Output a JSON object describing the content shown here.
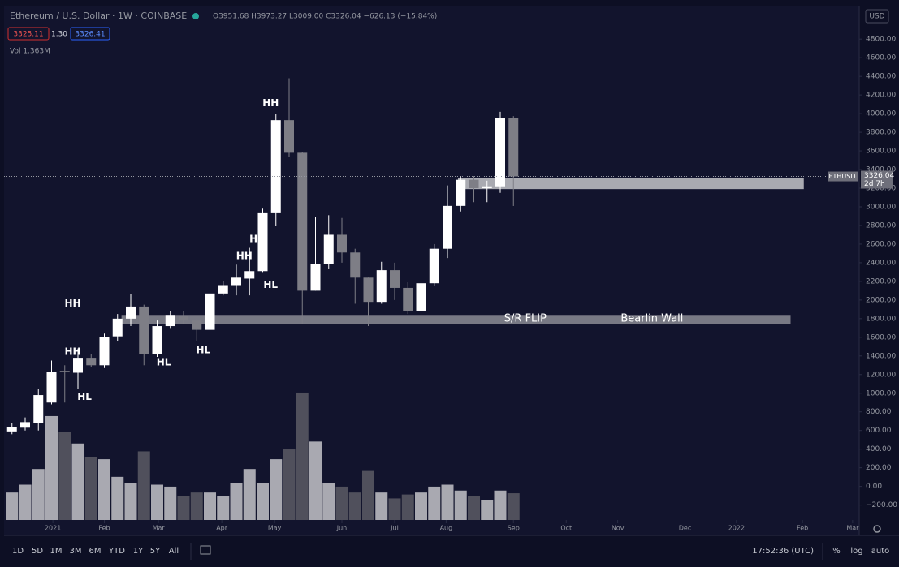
{
  "header": {
    "symbol": "Ethereum / U.S. Dollar · 1W · COINBASE",
    "ohlc": "O3951.68 H3973.27 L3009.00 C3326.04 −626.13 (−15.84%)",
    "bid": "3325.11",
    "spread": "1.30",
    "ask": "3326.41",
    "volume": "Vol 1.363M",
    "currency": "USD"
  },
  "chart_data": {
    "type": "candlestick",
    "open": [
      590,
      630,
      680,
      900,
      1240,
      1220,
      1380,
      1300,
      1610,
      1800,
      1930,
      1420,
      1720,
      1830,
      1780,
      1680,
      2070,
      2160,
      2230,
      2310,
      2940,
      3930,
      3580,
      2100,
      2390,
      2700,
      2510,
      2240,
      1980,
      2320,
      2130,
      1880,
      2180,
      2550,
      3010,
      3290,
      3200,
      3220,
      3951.68
    ],
    "high": [
      680,
      740,
      1050,
      1350,
      1300,
      1480,
      1420,
      1640,
      1850,
      2060,
      1950,
      1780,
      1880,
      1880,
      1800,
      2150,
      2200,
      2380,
      2560,
      2980,
      4000,
      4380,
      3590,
      2890,
      2910,
      2880,
      2550,
      2240,
      2410,
      2400,
      2190,
      2200,
      2600,
      3230,
      3330,
      3330,
      3280,
      4020,
      3973.27
    ],
    "low": [
      560,
      600,
      600,
      880,
      900,
      1050,
      1280,
      1270,
      1560,
      1720,
      1300,
      1390,
      1700,
      1740,
      1560,
      1650,
      2050,
      2050,
      2050,
      2300,
      2800,
      3540,
      1740,
      2100,
      2330,
      2400,
      1960,
      1720,
      1960,
      2000,
      1850,
      1720,
      2150,
      2450,
      2950,
      3050,
      3050,
      3150,
      3009.0
    ],
    "close": [
      640,
      690,
      980,
      1230,
      1230,
      1380,
      1300,
      1600,
      1800,
      1930,
      1420,
      1720,
      1840,
      1780,
      1680,
      2070,
      2160,
      2240,
      2310,
      2940,
      3930,
      3580,
      2100,
      2390,
      2700,
      2510,
      2240,
      1980,
      2320,
      2130,
      1880,
      2180,
      2550,
      3010,
      3290,
      3200,
      3220,
      3950,
      3326.04
    ],
    "volume": [
      1.4,
      1.8,
      2.6,
      5.3,
      4.5,
      3.9,
      3.2,
      3.1,
      2.2,
      1.9,
      3.5,
      1.8,
      1.7,
      1.2,
      1.4,
      1.4,
      1.2,
      1.9,
      2.6,
      1.9,
      3.1,
      3.6,
      6.5,
      4.0,
      1.9,
      1.7,
      1.4,
      2.5,
      1.4,
      1.1,
      1.3,
      1.4,
      1.7,
      1.8,
      1.5,
      1.2,
      1.0,
      1.5,
      1.363
    ],
    "up_color": "#ffffff",
    "down_color": "#7e7e86",
    "volume_up_color": "#a9a9b1",
    "volume_down_color": "#50505c",
    "xlim": [
      -0.6,
      64.2
    ],
    "xticks": [
      {
        "value": 3.1,
        "label": "2021"
      },
      {
        "value": 7.0,
        "label": "Feb"
      },
      {
        "value": 11.1,
        "label": "Mar"
      },
      {
        "value": 15.9,
        "label": "Apr"
      },
      {
        "value": 19.9,
        "label": "May"
      },
      {
        "value": 25.0,
        "label": "Jun"
      },
      {
        "value": 29.0,
        "label": "Jul"
      },
      {
        "value": 32.9,
        "label": "Aug"
      },
      {
        "value": 38.0,
        "label": "Sep"
      },
      {
        "value": 42.0,
        "label": "Oct"
      },
      {
        "value": 45.9,
        "label": "Nov"
      },
      {
        "value": 51.0,
        "label": "Dec"
      },
      {
        "value": 54.9,
        "label": "2022"
      },
      {
        "value": 59.9,
        "label": "Feb"
      },
      {
        "value": 63.7,
        "label": "Mar"
      }
    ],
    "ylim": [
      -360,
      5150
    ],
    "yticks": [
      {
        "value": -200,
        "label": "−200.00"
      },
      {
        "value": 0,
        "label": "0.00"
      },
      {
        "value": 200,
        "label": "200.00"
      },
      {
        "value": 400,
        "label": "400.00"
      },
      {
        "value": 600,
        "label": "600.00"
      },
      {
        "value": 800,
        "label": "800.00"
      },
      {
        "value": 1000,
        "label": "1000.00"
      },
      {
        "value": 1200,
        "label": "1200.00"
      },
      {
        "value": 1400,
        "label": "1400.00"
      },
      {
        "value": 1600,
        "label": "1600.00"
      },
      {
        "value": 1800,
        "label": "1800.00"
      },
      {
        "value": 2000,
        "label": "2000.00"
      },
      {
        "value": 2200,
        "label": "2200.00"
      },
      {
        "value": 2400,
        "label": "2400.00"
      },
      {
        "value": 2600,
        "label": "2600.00"
      },
      {
        "value": 2800,
        "label": "2800.00"
      },
      {
        "value": 3000,
        "label": "3000.00"
      },
      {
        "value": 3200,
        "label": "3200.00"
      },
      {
        "value": 3400,
        "label": "3400.00"
      },
      {
        "value": 3600,
        "label": "3600.00"
      },
      {
        "value": 3800,
        "label": "3800.00"
      },
      {
        "value": 4000,
        "label": "4000.00"
      },
      {
        "value": 4200,
        "label": "4200.00"
      },
      {
        "value": 4400,
        "label": "4400.00"
      },
      {
        "value": 4600,
        "label": "4600.00"
      },
      {
        "value": 4800,
        "label": "4800.00"
      }
    ],
    "y2lim": [
      0,
      26.2
    ],
    "zones": [
      {
        "x0": 8.3,
        "x1": 59.0,
        "y0": 1740,
        "y1": 1840,
        "color": "#8b8b94"
      },
      {
        "x0": 33.8,
        "x1": 60.0,
        "y0": 3190,
        "y1": 3310,
        "color": "#c4c4c9"
      }
    ],
    "annotations": [
      {
        "text": "HH",
        "x": 19.6,
        "y": 4110
      },
      {
        "text": "HH",
        "x": 4.6,
        "y": 1960
      },
      {
        "text": "HH",
        "x": 4.6,
        "y": 1440
      },
      {
        "text": "HL",
        "x": 5.5,
        "y": 960
      },
      {
        "text": "HL",
        "x": 11.5,
        "y": 1330
      },
      {
        "text": "HL",
        "x": 14.5,
        "y": 1460
      },
      {
        "text": "HH",
        "x": 17.6,
        "y": 2470
      },
      {
        "text": "H",
        "x": 18.3,
        "y": 2650
      },
      {
        "text": "HL",
        "x": 19.6,
        "y": 2160
      },
      {
        "text": "S/R FLIP",
        "x": 38.9,
        "y": 1800
      },
      {
        "text": "Bearlin Wall",
        "x": 48.5,
        "y": 1800
      }
    ],
    "last_price": {
      "value": 3326.04,
      "symbol": "ETHUSD",
      "countdown": "2d 7h"
    }
  },
  "toolbar": {
    "ranges": [
      "1D",
      "5D",
      "1M",
      "3M",
      "6M",
      "YTD",
      "1Y",
      "5Y",
      "All"
    ],
    "time": "17:52:36 (UTC)",
    "options": [
      "%",
      "log",
      "auto"
    ]
  }
}
